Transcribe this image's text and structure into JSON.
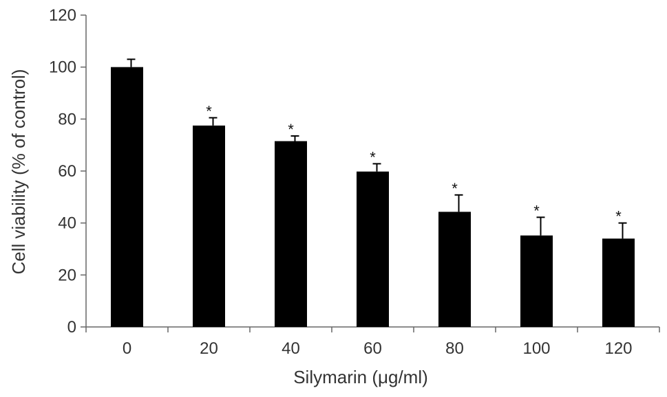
{
  "chart_data": {
    "type": "bar",
    "categories": [
      "0",
      "20",
      "40",
      "60",
      "80",
      "100",
      "120"
    ],
    "values": [
      100,
      77.5,
      71.5,
      59.8,
      44.3,
      35.2,
      34.0
    ],
    "errors": [
      3,
      3,
      2,
      3,
      6.5,
      7,
      6
    ],
    "significance": [
      "",
      "*",
      "*",
      "*",
      "*",
      "*",
      "*"
    ],
    "xlabel": "Silymarin (μg/ml)",
    "ylabel": "Cell viability (% of control)",
    "ylim": [
      0,
      120
    ],
    "yticks": [
      0,
      20,
      40,
      60,
      80,
      100,
      120
    ],
    "grid": false,
    "colors": {
      "bar": "#000000",
      "axis": "#666666",
      "text": "#333333"
    }
  }
}
